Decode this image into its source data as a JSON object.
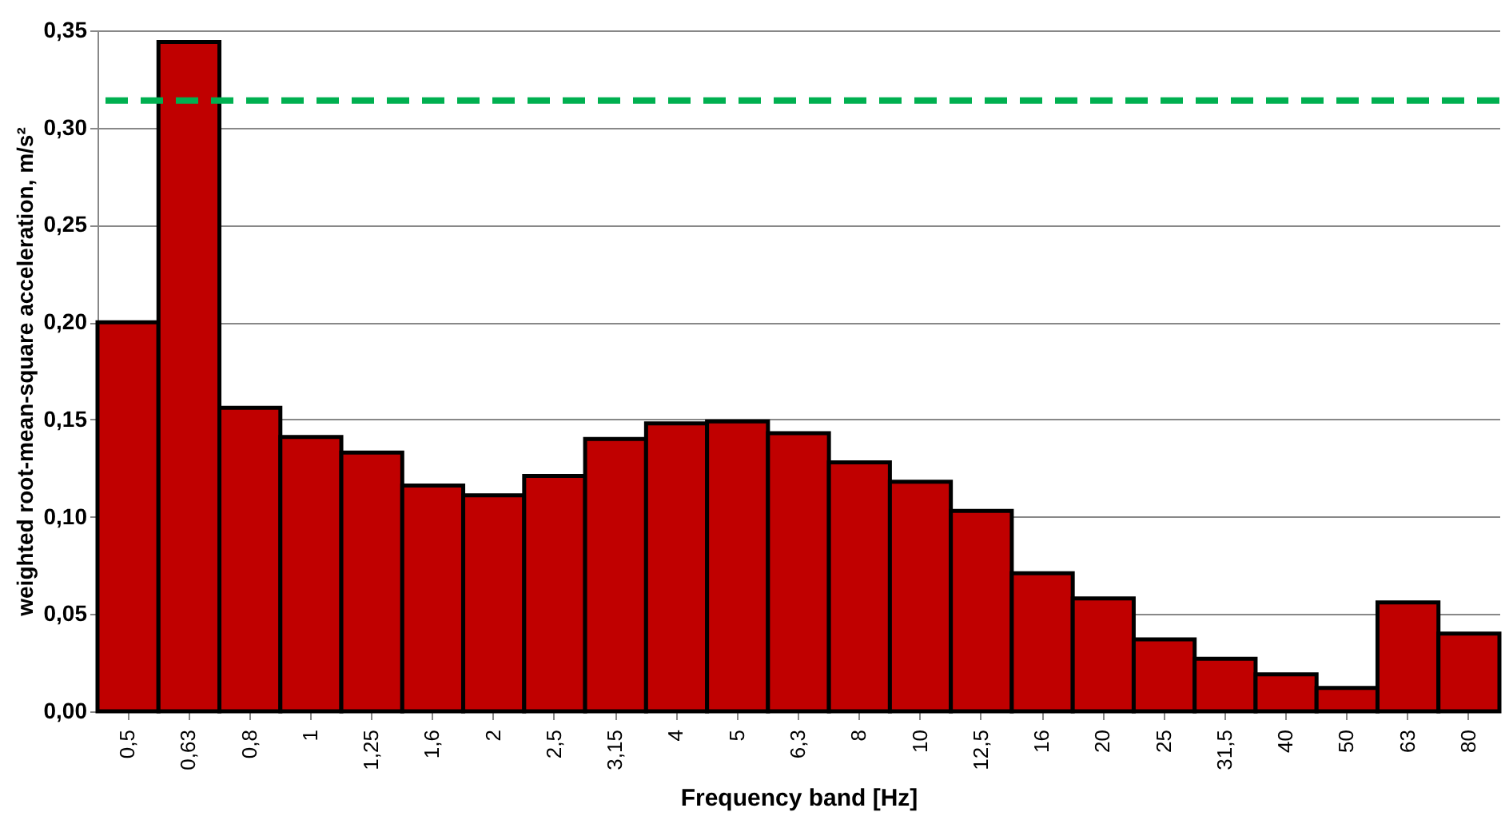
{
  "chart_data": {
    "type": "bar",
    "xlabel": "Frequency band [Hz]",
    "ylabel": "weighted root-mean-square acceleration, m/s²",
    "categories": [
      "0,5",
      "0,63",
      "0,8",
      "1",
      "1,25",
      "1,6",
      "2",
      "2,5",
      "3,15",
      "4",
      "5",
      "6,3",
      "8",
      "10",
      "12,5",
      "16",
      "20",
      "25",
      "31,5",
      "40",
      "50",
      "63",
      "80"
    ],
    "values": [
      0.2,
      0.344,
      0.156,
      0.141,
      0.133,
      0.116,
      0.111,
      0.121,
      0.14,
      0.148,
      0.149,
      0.143,
      0.128,
      0.118,
      0.103,
      0.071,
      0.058,
      0.037,
      0.027,
      0.019,
      0.012,
      0.056,
      0.04
    ],
    "color": "#c00000",
    "ylim": [
      0,
      0.35
    ],
    "yticks": [
      {
        "value": 0,
        "label": "0,00"
      },
      {
        "value": 0.05,
        "label": "0,05"
      },
      {
        "value": 0.1,
        "label": "0,10"
      },
      {
        "value": 0.15,
        "label": "0,15"
      },
      {
        "value": 0.2,
        "label": "0,20"
      },
      {
        "value": 0.25,
        "label": "0,25"
      },
      {
        "value": 0.3,
        "label": "0,30"
      },
      {
        "value": 0.35,
        "label": "0,35"
      }
    ],
    "grid": "y",
    "ref_lines": [
      {
        "axis": "y",
        "value": 0.314,
        "color": "#00b050",
        "line_style": "dashed"
      }
    ]
  }
}
